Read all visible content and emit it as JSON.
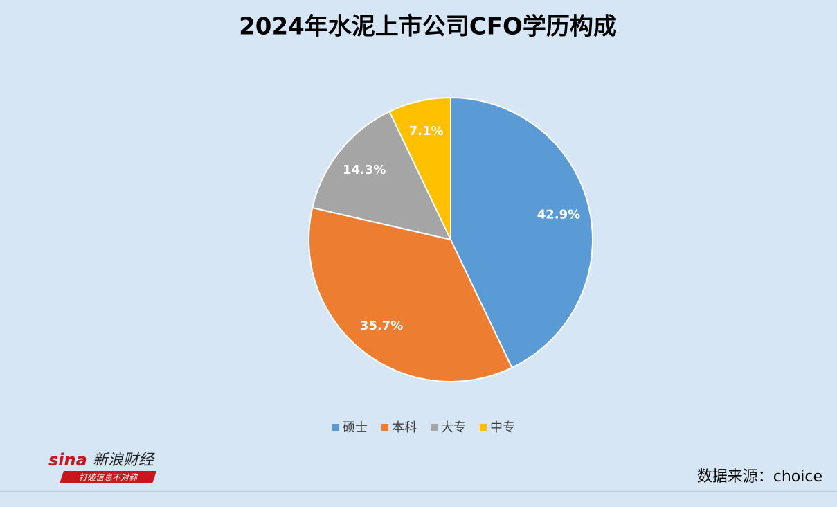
{
  "chart_data": {
    "type": "pie",
    "title": "2024年水泥上市公司CFO学历构成",
    "categories": [
      "硕士",
      "本科",
      "大专",
      "中专"
    ],
    "values": [
      42.9,
      35.7,
      14.3,
      7.1
    ],
    "value_labels": [
      "42.9%",
      "35.7%",
      "14.3%",
      "7.1%"
    ],
    "colors": [
      "#5b9bd5",
      "#ed7d31",
      "#a5a5a5",
      "#ffc000"
    ],
    "legend": "bottom"
  },
  "logo": {
    "brand": "sina",
    "name": "新浪财经",
    "slogan": "打破信息不对称"
  },
  "source": "数据来源：choice"
}
